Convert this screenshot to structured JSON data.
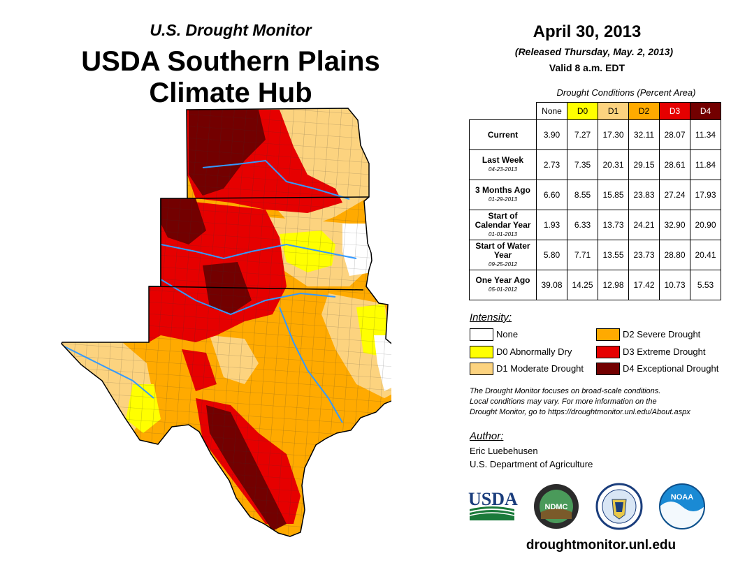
{
  "header": {
    "subtitle": "U.S. Drought Monitor",
    "title_line1": "USDA Southern Plains",
    "title_line2": "Climate Hub"
  },
  "map_info": {
    "date": "April 30, 2013",
    "released": "(Released Thursday, May. 2, 2013)",
    "valid": "Valid 8 a.m. EDT"
  },
  "conditions_table": {
    "caption": "Drought Conditions (Percent Area)",
    "columns": [
      "None",
      "D0",
      "D1",
      "D2",
      "D3",
      "D4"
    ],
    "column_colors": [
      "#ffffff",
      "#ffff00",
      "#fcd37f",
      "#ffaa00",
      "#e60000",
      "#730000"
    ],
    "rows": [
      {
        "label": "Current",
        "date": "",
        "values": [
          "3.90",
          "7.27",
          "17.30",
          "32.11",
          "28.07",
          "11.34"
        ]
      },
      {
        "label": "Last Week",
        "date": "04-23-2013",
        "values": [
          "2.73",
          "7.35",
          "20.31",
          "29.15",
          "28.61",
          "11.84"
        ]
      },
      {
        "label": "3 Months Ago",
        "date": "01-29-2013",
        "values": [
          "6.60",
          "8.55",
          "15.85",
          "23.83",
          "27.24",
          "17.93"
        ]
      },
      {
        "label": "Start of Calendar Year",
        "date": "01-01-2013",
        "values": [
          "1.93",
          "6.33",
          "13.73",
          "24.21",
          "32.90",
          "20.90"
        ]
      },
      {
        "label": "Start of Water Year",
        "date": "09-25-2012",
        "values": [
          "5.80",
          "7.71",
          "13.55",
          "23.73",
          "28.80",
          "20.41"
        ]
      },
      {
        "label": "One Year Ago",
        "date": "05-01-2012",
        "values": [
          "39.08",
          "14.25",
          "12.98",
          "17.42",
          "10.73",
          "5.53"
        ]
      }
    ]
  },
  "legend": {
    "title": "Intensity:",
    "items": [
      {
        "label": "None",
        "color": "#ffffff"
      },
      {
        "label": "D0 Abnormally Dry",
        "color": "#ffff00"
      },
      {
        "label": "D1 Moderate Drought",
        "color": "#fcd37f"
      },
      {
        "label": "D2 Severe Drought",
        "color": "#ffaa00"
      },
      {
        "label": "D3 Extreme Drought",
        "color": "#e60000"
      },
      {
        "label": "D4 Exceptional Drought",
        "color": "#730000"
      }
    ]
  },
  "note": {
    "line1": "The Drought Monitor focuses on broad-scale conditions.",
    "line2": "Local conditions may vary. For more information on the",
    "line3": "Drought Monitor, go to https://droughtmonitor.unl.edu/About.aspx"
  },
  "author": {
    "title": "Author:",
    "name": "Eric Luebehusen",
    "org": "U.S. Department of Agriculture"
  },
  "logos": {
    "usda": "USDA",
    "ndmc": "NDMC",
    "noaa": "NOAA"
  },
  "website": "droughtmonitor.unl.edu"
}
